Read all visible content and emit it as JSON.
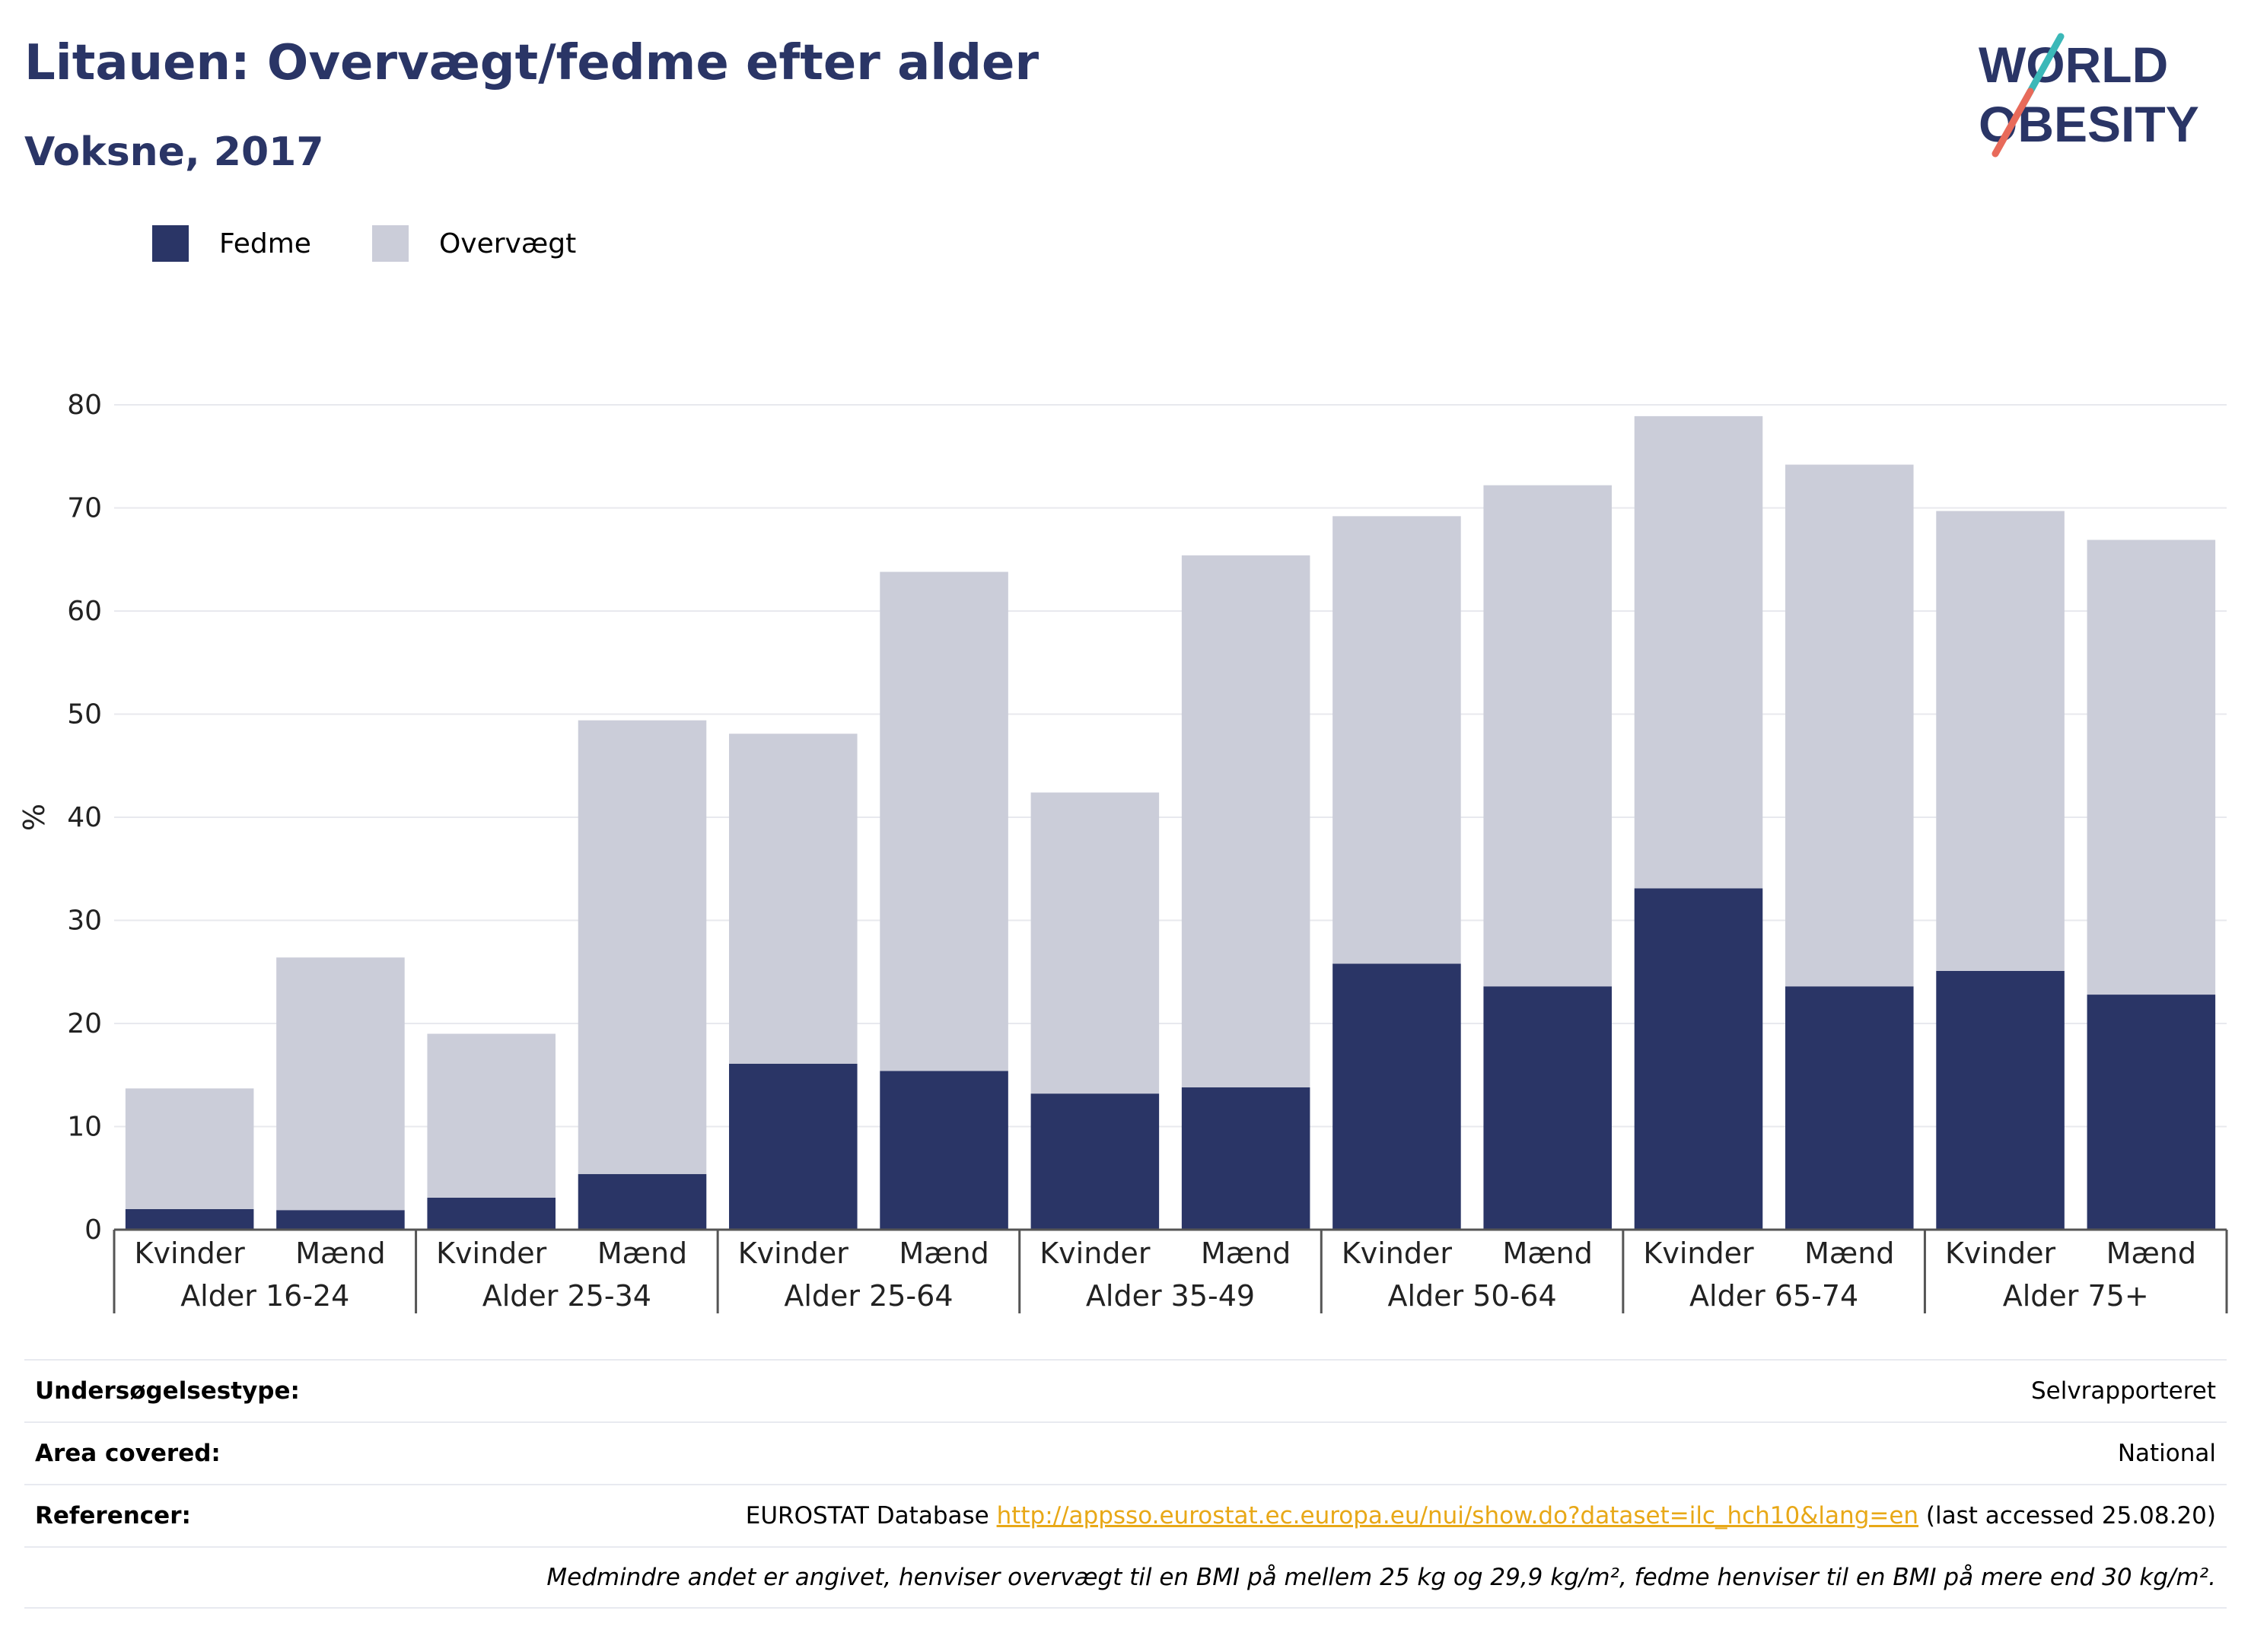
{
  "title": "Litauen: Overvægt/fedme efter alder",
  "subtitle": "Voksne, 2017",
  "logo": {
    "line1": "WORLD",
    "line2": "OBESITY",
    "accent_teal": "#3bb8b8",
    "accent_coral": "#e86a5a"
  },
  "legend": [
    {
      "label": "Fedme",
      "color": "#2a3566"
    },
    {
      "label": "Overvægt",
      "color": "#cbcdd9"
    }
  ],
  "chart_data": {
    "type": "bar",
    "stacked": true,
    "ylabel": "%",
    "ylim": [
      0,
      80
    ],
    "yticks": [
      "0",
      "10",
      "20",
      "30",
      "40",
      "50",
      "60",
      "70",
      "80"
    ],
    "grid": true,
    "legend_position": "top-left",
    "groups": [
      "Alder 16-24",
      "Alder 25-34",
      "Alder 25-64",
      "Alder 35-49",
      "Alder 50-64",
      "Alder 65-74",
      "Alder 75+"
    ],
    "categories": [
      "Kvinder",
      "Mænd",
      "Kvinder",
      "Mænd",
      "Kvinder",
      "Mænd",
      "Kvinder",
      "Mænd",
      "Kvinder",
      "Mænd",
      "Kvinder",
      "Mænd",
      "Kvinder",
      "Mænd"
    ],
    "series": [
      {
        "name": "Fedme",
        "color": "#2a3566",
        "values": [
          2.0,
          1.9,
          3.1,
          5.4,
          16.1,
          15.4,
          13.2,
          13.8,
          25.8,
          23.6,
          33.1,
          23.6,
          25.1,
          22.8
        ]
      },
      {
        "name": "Overvægt",
        "color": "#cbcdd9",
        "values": [
          11.7,
          24.5,
          15.9,
          44.0,
          32.0,
          48.4,
          29.2,
          51.6,
          43.4,
          48.6,
          45.8,
          50.6,
          44.6,
          44.1
        ]
      }
    ]
  },
  "info": {
    "survey_label": "Undersøgelsestype:",
    "survey_value": "Selvrapporteret",
    "area_label": "Area covered:",
    "area_value": "National",
    "ref_label": "Referencer:",
    "ref_prefix": "EUROSTAT Database",
    "ref_link": "http://appsso.eurostat.ec.europa.eu/nui/show.do?dataset=ilc_hch10&lang=en",
    "ref_suffix": "(last accessed 25.08.20)",
    "note": "Medmindre andet er angivet, henviser overvægt til en BMI på mellem 25 kg og 29,9 kg/m², fedme henviser til en BMI på mere end 30 kg/m²."
  }
}
